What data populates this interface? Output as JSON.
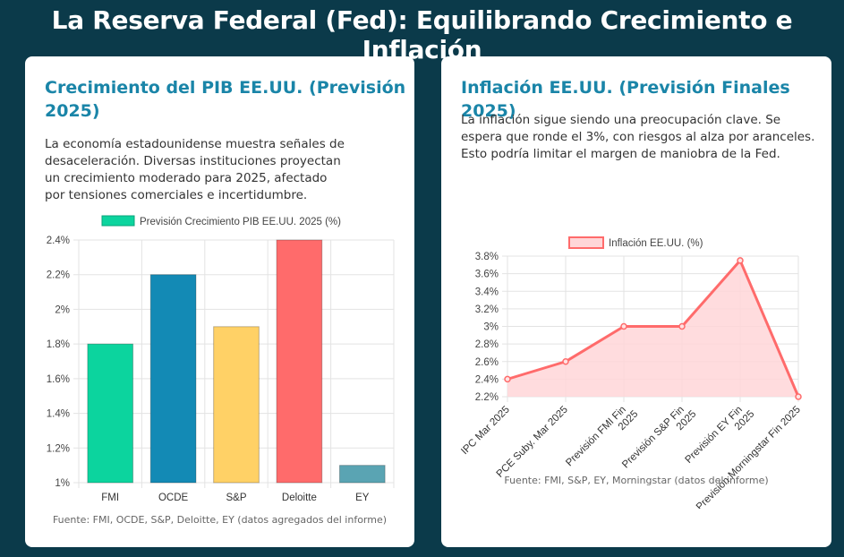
{
  "page": {
    "title": "La Reserva Federal (Fed): Equilibrando Crecimiento e Inflación"
  },
  "gdp_card": {
    "title_line1": "Crecimiento del PIB EE.UU. (Previsión",
    "title_line2": "2025)",
    "text_lines": [
      "La economía estadounidense muestra señales de",
      "desaceleración. Diversas instituciones proyectan",
      "un crecimiento moderado para 2025, afectado",
      "por tensiones comerciales e incertidumbre."
    ],
    "source": "Fuente: FMI, OCDE, S&P, Deloitte, EY (datos agregados del informe)"
  },
  "inflation_card": {
    "title": "Inflación EE.UU. (Previsión Finales 2025)",
    "text_lines": [
      "La inflación sigue siendo una preocupación clave. Se",
      "espera que ronde el 3%, con riesgos al alza por aranceles.",
      "Esto podría limitar el margen de maniobra de la Fed."
    ],
    "source": "Fuente: FMI, S&P, EY, Morningstar (datos del informe)"
  },
  "chart_data": [
    {
      "type": "bar",
      "legend": "Previsión Crecimiento PIB EE.UU. 2025 (%)",
      "categories": [
        "FMI",
        "OCDE",
        "S&P",
        "Deloitte",
        "EY"
      ],
      "values": [
        1.8,
        2.2,
        1.9,
        2.4,
        1.1
      ],
      "colors": [
        "#0cd49e",
        "#138ab5",
        "#ffd166",
        "#ff6b6b",
        "#5aa4b3"
      ],
      "ylim": [
        1,
        2.4
      ],
      "yticks": [
        "1%",
        "1.2%",
        "1.4%",
        "1.6%",
        "1.8%",
        "2%",
        "2.2%",
        "2.4%"
      ],
      "grid": true,
      "legend_position": "top"
    },
    {
      "type": "area",
      "legend": "Inflación EE.UU. (%)",
      "categories": [
        [
          "IPC Mar 2025"
        ],
        [
          "PCE Suby. Mar 2025"
        ],
        [
          "Previsión FMI Fin",
          "2025"
        ],
        [
          "Previsión S&P Fin",
          "2025"
        ],
        [
          "Previsión EY Fin",
          "2025"
        ],
        [
          "Previsión Morningstar Fin 2025"
        ]
      ],
      "values": [
        2.4,
        2.6,
        3.0,
        3.0,
        3.75,
        2.2
      ],
      "line_color": "#ff6b6b",
      "fill_color": "#ffd6d8",
      "ylim": [
        2.2,
        3.8
      ],
      "yticks": [
        "2.2%",
        "2.4%",
        "2.6%",
        "2.8%",
        "3%",
        "3.2%",
        "3.4%",
        "3.6%",
        "3.8%"
      ],
      "grid": true,
      "legend_position": "top"
    }
  ]
}
